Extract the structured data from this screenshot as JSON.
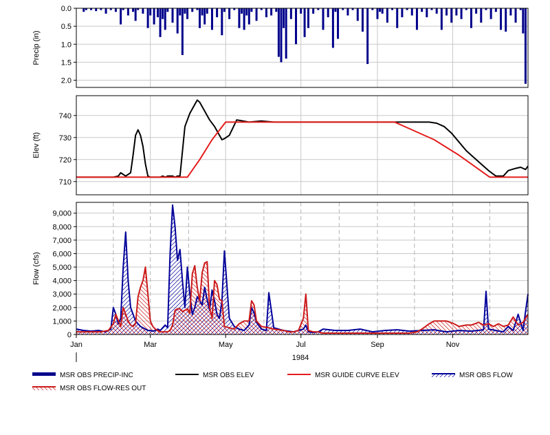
{
  "colors": {
    "precip": "#00008b",
    "obs_elev": "#000000",
    "guide_curve": "#e51c1c",
    "obs_flow": "#00009a",
    "flow_res_out": "#cc1a1a",
    "grid": "#c8c8c8",
    "vgrid_dashed": "#b4b4b4"
  },
  "x_axis": {
    "ticks": [
      "Jan",
      "Mar",
      "May",
      "Jul",
      "Sep",
      "Nov"
    ],
    "tick_days": [
      0,
      60,
      121,
      182,
      244,
      305
    ],
    "year_label": "1984",
    "domain_days": [
      0,
      366
    ]
  },
  "legend": {
    "items": [
      {
        "label": "MSR OBS PRECIP-INC",
        "style": "thick-bar"
      },
      {
        "label": "MSR OBS ELEV",
        "style": "black-line"
      },
      {
        "label": "MSR GUIDE CURVE ELEV",
        "style": "red-line"
      },
      {
        "label": "MSR OBS FLOW",
        "style": "blue-hatch"
      },
      {
        "label": "MSR OBS FLOW-RES OUT",
        "style": "red-hatch"
      }
    ]
  },
  "chart_data": [
    {
      "type": "bar",
      "id": "precip",
      "ylabel": "Precip (in)",
      "inverted": true,
      "ylim": [
        0,
        2.2
      ],
      "yticks": [
        0.0,
        0.5,
        1.0,
        1.5,
        2.0
      ],
      "ytick_labels": [
        "0.0",
        "0.5",
        "1.0",
        "1.5",
        "2.0"
      ],
      "series": [
        {
          "name": "MSR OBS PRECIP-INC",
          "day": [
            6,
            8,
            12,
            16,
            20,
            24,
            28,
            32,
            36,
            38,
            42,
            46,
            48,
            50,
            54,
            58,
            60,
            63,
            66,
            68,
            70,
            72,
            74,
            78,
            82,
            84,
            86,
            88,
            90,
            94,
            98,
            100,
            102,
            104,
            106,
            110,
            114,
            118,
            120,
            124,
            128,
            132,
            134,
            136,
            138,
            140,
            142,
            146,
            150,
            154,
            158,
            162,
            164,
            166,
            168,
            170,
            174,
            178,
            182,
            185,
            188,
            192,
            196,
            200,
            204,
            208,
            210,
            212,
            216,
            220,
            224,
            228,
            232,
            236,
            240,
            244,
            246,
            248,
            252,
            256,
            260,
            264,
            268,
            272,
            276,
            280,
            284,
            288,
            292,
            296,
            300,
            304,
            308,
            312,
            316,
            320,
            324,
            328,
            332,
            336,
            340,
            344,
            348,
            352,
            356,
            360,
            362,
            364
          ],
          "values": [
            0.1,
            0.05,
            0.05,
            0.08,
            0.05,
            0.15,
            0.05,
            0.1,
            0.45,
            0.05,
            0.2,
            0.1,
            0.35,
            0.05,
            0.15,
            0.55,
            0.2,
            0.45,
            0.25,
            0.8,
            0.3,
            0.6,
            0.1,
            0.4,
            0.7,
            0.2,
            1.3,
            0.15,
            0.3,
            0.1,
            0.05,
            0.55,
            0.2,
            0.45,
            0.15,
            0.6,
            0.25,
            0.75,
            0.1,
            0.3,
            0.05,
            0.55,
            0.15,
            0.6,
            0.2,
            0.45,
            0.1,
            0.35,
            0.05,
            0.25,
            0.2,
            0.1,
            1.35,
            1.5,
            0.55,
            1.4,
            0.3,
            1.0,
            0.15,
            0.8,
            0.55,
            0.15,
            0.05,
            0.6,
            0.25,
            1.1,
            0.1,
            0.85,
            0.05,
            0.2,
            0.05,
            0.35,
            0.65,
            1.55,
            0.05,
            0.3,
            0.1,
            0.15,
            0.4,
            0.05,
            0.55,
            0.25,
            0.05,
            0.2,
            0.6,
            0.1,
            0.25,
            0.05,
            0.15,
            0.6,
            0.2,
            0.4,
            0.2,
            0.3,
            0.05,
            0.55,
            0.15,
            0.4,
            0.05,
            0.3,
            0.1,
            0.6,
            0.65,
            0.2,
            0.4,
            0.05,
            0.7,
            2.1
          ]
        }
      ]
    },
    {
      "type": "line",
      "id": "elev",
      "ylabel": "Elev (ft)",
      "ylim": [
        704,
        749
      ],
      "yticks": [
        710,
        720,
        730,
        740
      ],
      "ytick_labels": [
        "710",
        "720",
        "730",
        "740"
      ],
      "series": [
        {
          "name": "MSR OBS ELEV",
          "day": [
            0,
            20,
            30,
            34,
            36,
            40,
            44,
            46,
            48,
            50,
            52,
            54,
            56,
            58,
            60,
            62,
            64,
            66,
            68,
            70,
            72,
            74,
            76,
            78,
            80,
            82,
            84,
            88,
            92,
            96,
            98,
            100,
            104,
            108,
            112,
            116,
            118,
            120,
            124,
            130,
            140,
            150,
            160,
            170,
            180,
            190,
            200,
            210,
            220,
            230,
            240,
            250,
            260,
            268,
            274,
            280,
            286,
            292,
            298,
            304,
            310,
            316,
            322,
            328,
            334,
            340,
            346,
            350,
            356,
            360,
            364,
            366
          ],
          "values": [
            712,
            712,
            712,
            712.5,
            714,
            712.5,
            714,
            722,
            731,
            733.5,
            731,
            726,
            718,
            712.5,
            712,
            712,
            712,
            712,
            712,
            712.5,
            712,
            712.5,
            712.5,
            712.5,
            712,
            712.5,
            712.5,
            735,
            741,
            745,
            747,
            746,
            742,
            738,
            735,
            731,
            729,
            729.5,
            731,
            738,
            737,
            737.5,
            737,
            737,
            737,
            737,
            737,
            737,
            737,
            737,
            737,
            737,
            737,
            737,
            737,
            737,
            737,
            736.5,
            735,
            732,
            728,
            724,
            721,
            718,
            715,
            712.5,
            712.5,
            715,
            716,
            716.5,
            715.5,
            717
          ]
        },
        {
          "name": "MSR GUIDE CURVE ELEV",
          "day": [
            0,
            90,
            100,
            110,
            121,
            130,
            150,
            180,
            210,
            240,
            258,
            270,
            290,
            310,
            320,
            335,
            350,
            366
          ],
          "values": [
            712,
            712,
            720,
            729,
            737,
            737,
            737,
            737,
            737,
            737,
            737,
            734,
            729,
            722,
            718,
            712,
            712,
            712
          ]
        }
      ]
    },
    {
      "type": "area",
      "id": "flow",
      "ylabel": "Flow (cfs)",
      "ylim": [
        0,
        9800
      ],
      "yticks": [
        0,
        1000,
        2000,
        3000,
        4000,
        5000,
        6000,
        7000,
        8000,
        9000
      ],
      "ytick_labels": [
        "0",
        "1,000",
        "2,000",
        "3,000",
        "4,000",
        "5,000",
        "6,000",
        "7,000",
        "8,000",
        "9,000"
      ],
      "series": [
        {
          "name": "MSR OBS FLOW",
          "day": [
            0,
            6,
            12,
            18,
            24,
            28,
            30,
            32,
            34,
            36,
            38,
            40,
            42,
            44,
            46,
            48,
            50,
            52,
            54,
            56,
            58,
            60,
            62,
            64,
            66,
            68,
            70,
            72,
            74,
            76,
            78,
            80,
            82,
            84,
            86,
            88,
            90,
            92,
            94,
            96,
            98,
            100,
            102,
            104,
            106,
            108,
            110,
            112,
            114,
            116,
            118,
            120,
            124,
            128,
            132,
            136,
            140,
            142,
            144,
            146,
            150,
            154,
            156,
            160,
            164,
            168,
            172,
            176,
            180,
            184,
            186,
            188,
            192,
            196,
            200,
            210,
            220,
            230,
            240,
            250,
            260,
            270,
            280,
            290,
            300,
            310,
            320,
            330,
            332,
            334,
            340,
            346,
            350,
            354,
            358,
            362,
            364,
            366
          ],
          "values": [
            400,
            300,
            250,
            300,
            200,
            400,
            2000,
            1500,
            800,
            1200,
            5000,
            7600,
            4000,
            2000,
            1500,
            1000,
            800,
            600,
            500,
            400,
            300,
            300,
            250,
            300,
            400,
            300,
            500,
            700,
            500,
            6000,
            9600,
            8000,
            5500,
            6300,
            4000,
            2000,
            5000,
            3000,
            1500,
            2000,
            2800,
            2500,
            2200,
            3500,
            2600,
            1800,
            3300,
            2500,
            1500,
            1200,
            2500,
            6200,
            1200,
            600,
            400,
            300,
            700,
            2000,
            1600,
            900,
            400,
            300,
            3100,
            500,
            400,
            300,
            250,
            200,
            300,
            400,
            700,
            200,
            150,
            200,
            400,
            300,
            300,
            400,
            200,
            300,
            350,
            250,
            300,
            350,
            200,
            300,
            250,
            350,
            3200,
            400,
            300,
            200,
            600,
            300,
            1500,
            300,
            1700,
            3000
          ]
        },
        {
          "name": "MSR OBS FLOW-RES OUT",
          "day": [
            0,
            10,
            20,
            26,
            30,
            32,
            36,
            38,
            40,
            42,
            44,
            46,
            48,
            50,
            52,
            54,
            56,
            58,
            60,
            62,
            64,
            66,
            68,
            70,
            72,
            74,
            76,
            78,
            80,
            82,
            84,
            86,
            88,
            90,
            92,
            94,
            96,
            98,
            100,
            102,
            104,
            106,
            108,
            110,
            112,
            114,
            116,
            118,
            120,
            124,
            128,
            132,
            136,
            140,
            142,
            144,
            146,
            150,
            156,
            160,
            164,
            168,
            172,
            176,
            180,
            184,
            186,
            188,
            192,
            196,
            200,
            210,
            220,
            230,
            240,
            250,
            260,
            270,
            276,
            280,
            286,
            290,
            296,
            300,
            306,
            310,
            316,
            320,
            326,
            330,
            334,
            338,
            342,
            346,
            350,
            354,
            358,
            362,
            366
          ],
          "values": [
            200,
            200,
            200,
            300,
            800,
            1500,
            600,
            2000,
            1500,
            1000,
            700,
            600,
            800,
            2800,
            3500,
            4000,
            5000,
            3000,
            1000,
            600,
            400,
            300,
            200,
            200,
            200,
            200,
            300,
            700,
            1800,
            1900,
            1900,
            1700,
            1800,
            1900,
            1600,
            4500,
            5100,
            3500,
            2500,
            4600,
            5300,
            5400,
            2000,
            1200,
            4000,
            3700,
            2600,
            2500,
            600,
            500,
            400,
            800,
            1000,
            1000,
            2500,
            2200,
            1000,
            600,
            500,
            400,
            350,
            300,
            200,
            200,
            300,
            1200,
            3000,
            300,
            200,
            200,
            100,
            100,
            100,
            100,
            100,
            100,
            100,
            100,
            200,
            400,
            800,
            1000,
            1000,
            1000,
            800,
            600,
            700,
            700,
            900,
            700,
            800,
            600,
            800,
            600,
            700,
            1300,
            700,
            900,
            1500
          ]
        }
      ]
    }
  ]
}
